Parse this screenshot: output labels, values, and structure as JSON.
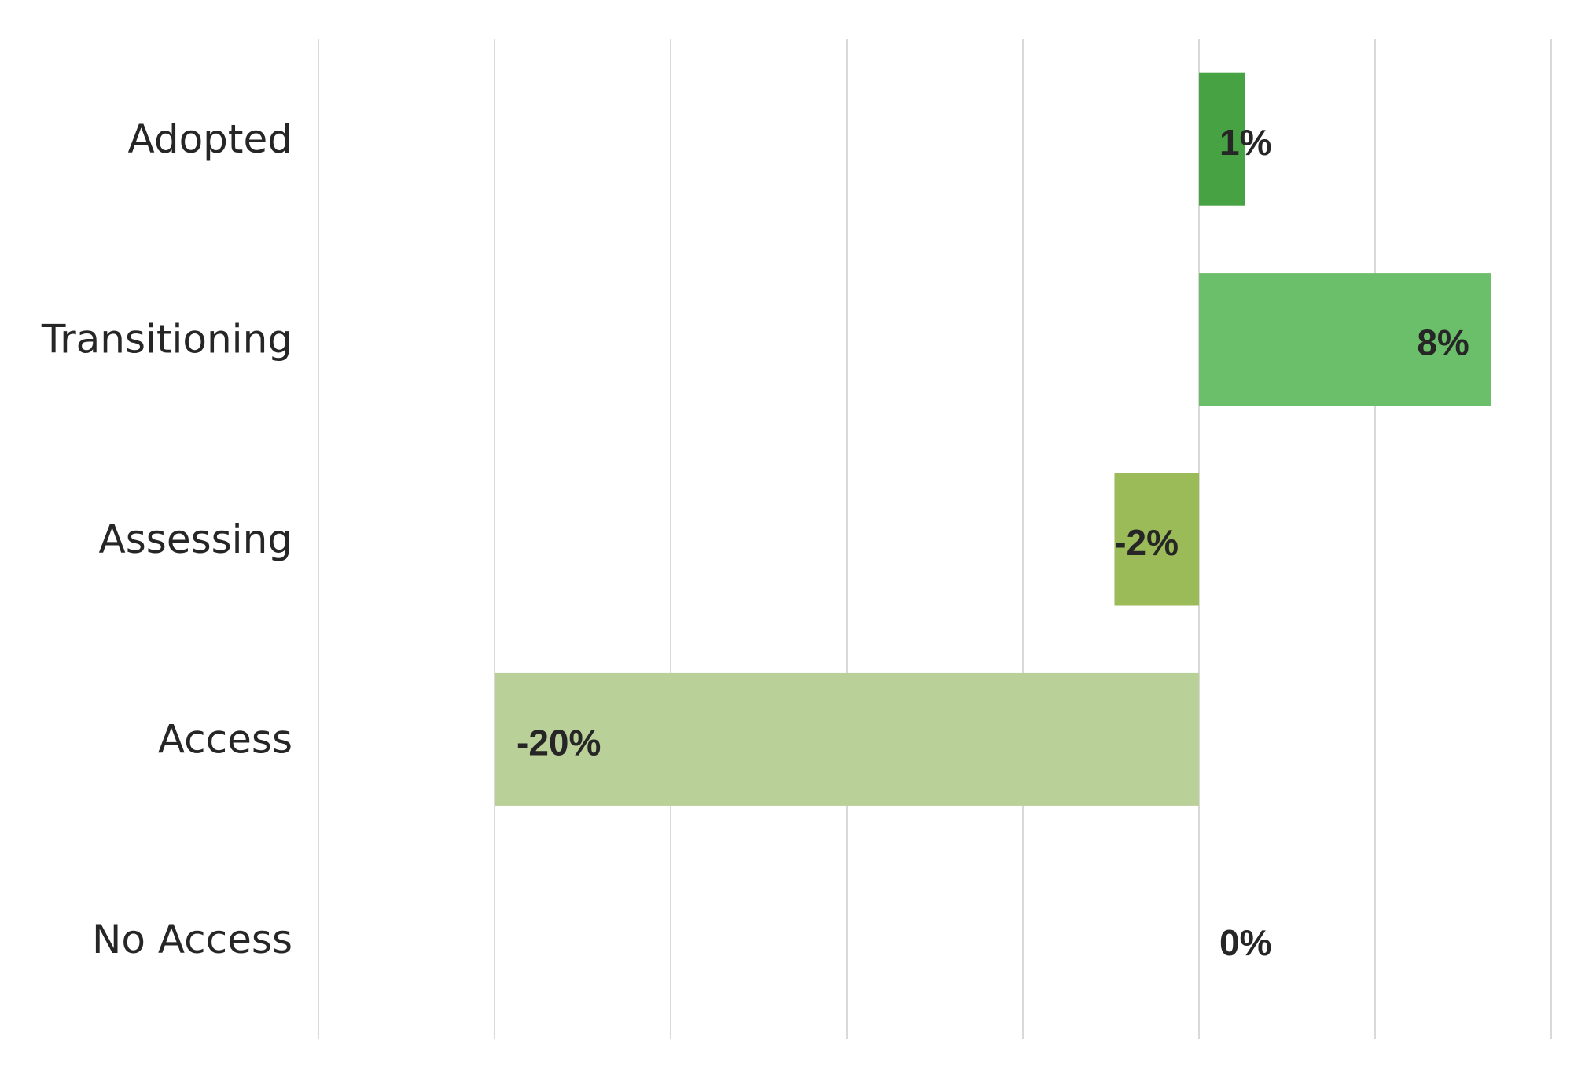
{
  "chart_data": {
    "type": "bar",
    "orientation": "horizontal",
    "categories": [
      "Adopted",
      "Transitioning",
      "Assessing",
      "Access",
      "No Access"
    ],
    "values": [
      1.3,
      8.3,
      -2.4,
      -20.0,
      0
    ],
    "data_labels": [
      "1%",
      "8%",
      "-2%",
      "-20%",
      "0%"
    ],
    "colors": [
      "#47a244",
      "#6bbf6a",
      "#9bba58",
      "#bad099",
      "#bad099"
    ],
    "xlim": [
      -25,
      10
    ],
    "x_grid_step": 5,
    "grid": true,
    "gridline_color": "#d9d9d9",
    "title": "",
    "xlabel": "",
    "ylabel": ""
  }
}
